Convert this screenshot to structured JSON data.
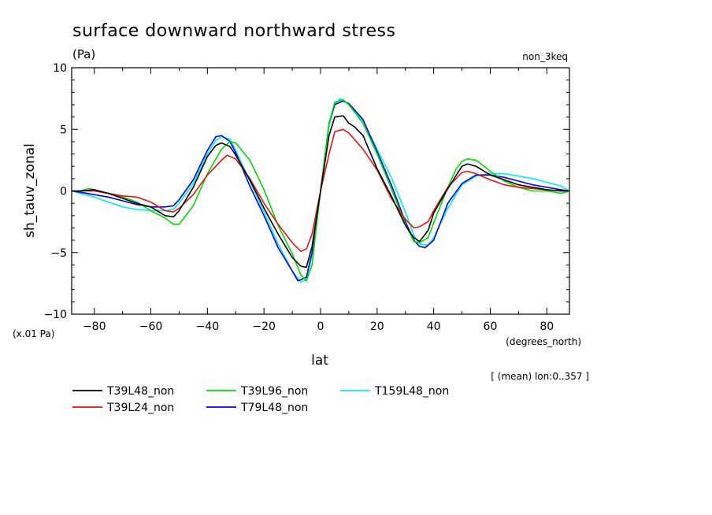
{
  "chart_data": {
    "type": "line",
    "title": "surface downward northward stress",
    "units_label": "(Pa)",
    "experiment_label": "non_3keq",
    "xlabel": "lat",
    "x_units": "(degrees_north)",
    "ylabel": "sh_tauv_zonal",
    "y_scale_note": "(x.01 Pa)",
    "info_note": "[ (mean) lon:0..357 ]",
    "xlim": [
      -88,
      88
    ],
    "ylim": [
      -10,
      10
    ],
    "x_ticks": [
      -80,
      -60,
      -40,
      -20,
      0,
      20,
      40,
      60,
      80
    ],
    "x_tick_labels": [
      "−80",
      "−60",
      "−40",
      "−20",
      "0",
      "20",
      "40",
      "60",
      "80"
    ],
    "y_ticks": [
      -10,
      -5,
      0,
      5,
      10
    ],
    "y_tick_labels": [
      "−10",
      "−5",
      "0",
      "5",
      "10"
    ],
    "grid": false,
    "legend_position": "bottom",
    "series": [
      {
        "name": "T39L48_non",
        "color": "#000000",
        "x": [
          -88,
          -85,
          -80,
          -75,
          -70,
          -65,
          -60,
          -55,
          -52,
          -50,
          -45,
          -40,
          -37,
          -35,
          -32,
          -30,
          -25,
          -20,
          -15,
          -10,
          -7,
          -5,
          -3,
          0,
          3,
          5,
          8,
          10,
          12,
          15,
          20,
          25,
          30,
          33,
          35,
          38,
          40,
          45,
          50,
          52,
          55,
          60,
          65,
          70,
          75,
          80,
          85,
          88
        ],
        "y": [
          0,
          0,
          0.1,
          -0.2,
          -0.6,
          -1,
          -1.3,
          -2,
          -2.1,
          -1.6,
          0.3,
          2.8,
          3.7,
          3.9,
          3.6,
          2.9,
          0.9,
          -1.4,
          -3.5,
          -5.4,
          -6.1,
          -6.2,
          -4.5,
          0,
          4.5,
          6,
          6.1,
          5.5,
          5.2,
          4.5,
          1.8,
          -0.4,
          -2.8,
          -3.8,
          -4.1,
          -3.2,
          -1.8,
          0.2,
          2,
          2.2,
          2,
          1.3,
          0.9,
          0.5,
          0.3,
          0.1,
          0,
          0
        ]
      },
      {
        "name": "T39L24_non",
        "color": "#ee1111",
        "x": [
          -88,
          -85,
          -80,
          -75,
          -70,
          -65,
          -60,
          -55,
          -52,
          -50,
          -45,
          -40,
          -35,
          -33,
          -30,
          -25,
          -20,
          -15,
          -10,
          -7,
          -5,
          -3,
          0,
          3,
          5,
          8,
          10,
          15,
          20,
          25,
          30,
          33,
          35,
          38,
          40,
          45,
          50,
          52,
          55,
          60,
          65,
          70,
          75,
          80,
          85,
          88
        ],
        "y": [
          0,
          0,
          0,
          -0.2,
          -0.4,
          -0.5,
          -0.9,
          -1.6,
          -1.7,
          -1.4,
          -0.3,
          1.3,
          2.5,
          2.9,
          2.6,
          1,
          -1,
          -2.7,
          -4.2,
          -4.9,
          -4.7,
          -3.5,
          0,
          3,
          4.8,
          5,
          4.7,
          3.4,
          1.7,
          -0.6,
          -2.3,
          -3,
          -2.9,
          -2.5,
          -1.6,
          0.3,
          1.5,
          1.6,
          1.4,
          0.9,
          0.5,
          0.3,
          0.2,
          0.1,
          0,
          0
        ]
      },
      {
        "name": "T39L96_non",
        "color": "#00dd00",
        "x": [
          -88,
          -85,
          -82,
          -80,
          -75,
          -70,
          -65,
          -60,
          -55,
          -52,
          -50,
          -45,
          -40,
          -35,
          -32,
          -30,
          -25,
          -20,
          -15,
          -10,
          -7,
          -5,
          -3,
          0,
          3,
          5,
          8,
          10,
          15,
          20,
          25,
          30,
          33,
          35,
          38,
          40,
          45,
          48,
          50,
          52,
          55,
          60,
          65,
          70,
          75,
          80,
          85,
          88
        ],
        "y": [
          0,
          0,
          0.2,
          0.1,
          -0.2,
          -0.5,
          -0.9,
          -1.6,
          -2.2,
          -2.7,
          -2.7,
          -1.2,
          1.4,
          3.4,
          4,
          3.9,
          2.5,
          0.1,
          -2.8,
          -5.1,
          -6.8,
          -7.3,
          -6,
          0,
          5.5,
          7.2,
          7.4,
          7,
          5.5,
          3,
          0.2,
          -2.7,
          -4.1,
          -4.2,
          -3.8,
          -2.6,
          0.3,
          1.8,
          2.4,
          2.6,
          2.5,
          1.6,
          0.8,
          0.3,
          0,
          0,
          -0.2,
          0
        ]
      },
      {
        "name": "T79L48_non",
        "color": "#0000ee",
        "x": [
          -88,
          -85,
          -80,
          -75,
          -70,
          -65,
          -60,
          -55,
          -52,
          -50,
          -45,
          -40,
          -37,
          -35,
          -32,
          -30,
          -25,
          -20,
          -15,
          -10,
          -8,
          -5,
          -3,
          0,
          3,
          5,
          8,
          10,
          15,
          20,
          25,
          30,
          33,
          35,
          37,
          40,
          45,
          50,
          55,
          60,
          65,
          70,
          75,
          80,
          85,
          88
        ],
        "y": [
          0,
          -0.1,
          -0.3,
          -0.5,
          -0.8,
          -1.1,
          -1.3,
          -1.3,
          -1.2,
          -0.7,
          0.9,
          3.3,
          4.4,
          4.5,
          4,
          3.1,
          0.4,
          -2,
          -4.6,
          -6.5,
          -7.3,
          -7,
          -5,
          0,
          5.5,
          7,
          7.3,
          7.1,
          5.8,
          3.2,
          0.5,
          -2.5,
          -4,
          -4.5,
          -4.6,
          -4,
          -1,
          0.6,
          1.3,
          1.3,
          1.1,
          0.8,
          0.5,
          0.3,
          0.1,
          0
        ]
      },
      {
        "name": "T159L48_non",
        "color": "#00eeee",
        "x": [
          -88,
          -85,
          -80,
          -75,
          -70,
          -65,
          -60,
          -55,
          -52,
          -50,
          -45,
          -40,
          -37,
          -35,
          -32,
          -30,
          -25,
          -20,
          -15,
          -10,
          -7,
          -5,
          -3,
          0,
          3,
          5,
          7,
          10,
          15,
          20,
          25,
          30,
          33,
          35,
          38,
          40,
          45,
          50,
          55,
          60,
          65,
          70,
          75,
          80,
          85,
          88
        ],
        "y": [
          0,
          -0.2,
          -0.5,
          -0.9,
          -1.3,
          -1.5,
          -1.6,
          -1.6,
          -1.5,
          -1,
          0.6,
          3,
          4.1,
          4.4,
          4.2,
          3.3,
          0.8,
          -1.7,
          -4.3,
          -6.5,
          -7.4,
          -7.2,
          -5.2,
          0,
          5.3,
          7,
          7.5,
          7,
          5.7,
          3.4,
          1.1,
          -1.7,
          -3.6,
          -4.3,
          -4.4,
          -3.8,
          -1.4,
          0.5,
          1.2,
          1.4,
          1.4,
          1.2,
          1,
          0.7,
          0.4,
          0
        ]
      }
    ]
  }
}
